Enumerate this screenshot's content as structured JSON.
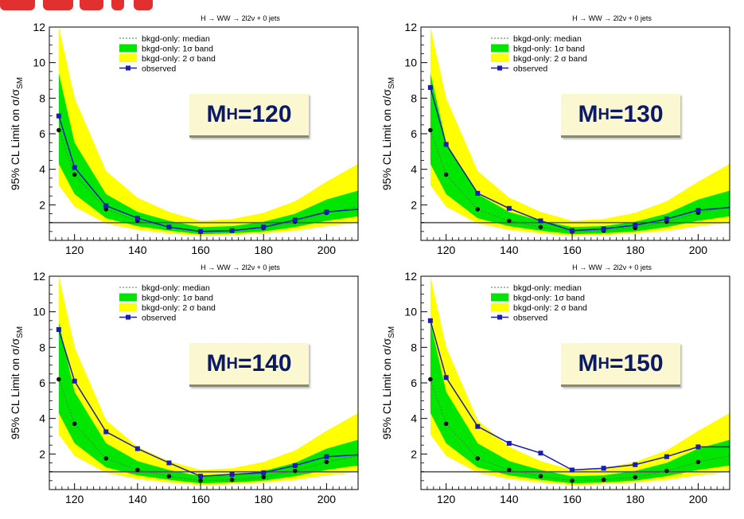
{
  "header_colors": {
    "slide_title": "#e23030"
  },
  "colors": {
    "band2": "#ffff00",
    "band1": "#00e600",
    "median": "#3a8a3a",
    "observed": "#1a1ab4",
    "reference": "#555555",
    "mass_label": "#0a1a66",
    "mass_label_bg": "#fbf7d0"
  },
  "panel_common": {
    "channel_title": "H → WW → 2l2ν + 0 jets",
    "ylabel": "95% CL Limit on σ/σ",
    "ylabel_sub": "SM",
    "legend": {
      "median": "bkgd-only: median",
      "band1": "bkgd-only: 1σ band",
      "band2": "bkgd-only: 2 σ band",
      "observed": "observed"
    },
    "yticks": [
      "2",
      "4",
      "6",
      "8",
      "10",
      "12"
    ],
    "xticks": [
      "120",
      "140",
      "160",
      "180",
      "200"
    ]
  },
  "panels": [
    {
      "mass_label": "M",
      "mass_sub": "H",
      "mass_value": "=120"
    },
    {
      "mass_label": "M",
      "mass_sub": "H",
      "mass_value": "=130"
    },
    {
      "mass_label": "M",
      "mass_sub": "H",
      "mass_value": "=140"
    },
    {
      "mass_label": "M",
      "mass_sub": "H",
      "mass_value": "=150"
    }
  ],
  "chart_data": [
    {
      "type": "line",
      "title": "H → WW → 2l2ν + 0 jets",
      "ylabel": "95% CL Limit on σ/σSM",
      "xlim": [
        112,
        210
      ],
      "ylim": [
        0,
        12
      ],
      "reference_line": 1,
      "x": [
        115,
        120,
        130,
        140,
        150,
        160,
        170,
        180,
        190,
        200,
        210
      ],
      "series": [
        {
          "name": "bkgd-only: median",
          "values": [
            6.2,
            3.7,
            1.75,
            1.1,
            0.75,
            0.5,
            0.55,
            0.7,
            1.05,
            1.55,
            1.9
          ]
        },
        {
          "name": "observed",
          "values": [
            7.0,
            4.1,
            1.95,
            1.25,
            0.75,
            0.5,
            0.55,
            0.75,
            1.15,
            1.6,
            1.75
          ]
        },
        {
          "name": "bkgd-only: 1σ band",
          "lower": [
            4.3,
            2.6,
            1.25,
            0.8,
            0.55,
            0.35,
            0.4,
            0.5,
            0.75,
            1.1,
            1.35
          ],
          "upper": [
            9.4,
            5.5,
            2.6,
            1.6,
            1.1,
            0.75,
            0.8,
            1.05,
            1.5,
            2.3,
            2.8
          ]
        },
        {
          "name": "bkgd-only: 2 σ band",
          "lower": [
            3.1,
            1.9,
            0.95,
            0.6,
            0.4,
            0.25,
            0.3,
            0.4,
            0.55,
            0.8,
            1.0
          ],
          "upper": [
            12.5,
            8.0,
            3.9,
            2.4,
            1.6,
            1.1,
            1.2,
            1.55,
            2.2,
            3.3,
            4.3
          ]
        }
      ]
    },
    {
      "type": "line",
      "title": "H → WW → 2l2ν + 0 jets",
      "ylabel": "95% CL Limit on σ/σSM",
      "xlim": [
        112,
        210
      ],
      "ylim": [
        0,
        12
      ],
      "reference_line": 1,
      "x": [
        115,
        120,
        130,
        140,
        150,
        160,
        170,
        180,
        190,
        200,
        210
      ],
      "series": [
        {
          "name": "bkgd-only: median",
          "values": [
            6.2,
            3.7,
            1.75,
            1.1,
            0.75,
            0.5,
            0.55,
            0.7,
            1.05,
            1.55,
            1.9
          ]
        },
        {
          "name": "observed",
          "values": [
            8.6,
            5.4,
            2.65,
            1.8,
            1.1,
            0.55,
            0.65,
            0.85,
            1.2,
            1.7,
            1.85
          ]
        },
        {
          "name": "bkgd-only: 1σ band",
          "lower": [
            4.3,
            2.6,
            1.25,
            0.8,
            0.55,
            0.35,
            0.4,
            0.5,
            0.75,
            1.1,
            1.35
          ],
          "upper": [
            9.4,
            5.5,
            2.6,
            1.6,
            1.1,
            0.75,
            0.8,
            1.05,
            1.5,
            2.3,
            2.8
          ]
        },
        {
          "name": "bkgd-only: 2 σ band",
          "lower": [
            3.1,
            1.9,
            0.95,
            0.6,
            0.4,
            0.25,
            0.3,
            0.4,
            0.55,
            0.8,
            1.0
          ],
          "upper": [
            12.5,
            8.0,
            3.9,
            2.4,
            1.6,
            1.1,
            1.2,
            1.55,
            2.2,
            3.3,
            4.3
          ]
        }
      ]
    },
    {
      "type": "line",
      "title": "H → WW → 2l2ν + 0 jets",
      "ylabel": "95% CL Limit on σ/σSM",
      "xlim": [
        112,
        210
      ],
      "ylim": [
        0,
        12
      ],
      "reference_line": 1,
      "x": [
        115,
        120,
        130,
        140,
        150,
        160,
        170,
        180,
        190,
        200,
        210
      ],
      "series": [
        {
          "name": "bkgd-only: median",
          "values": [
            6.2,
            3.7,
            1.75,
            1.1,
            0.75,
            0.5,
            0.55,
            0.7,
            1.05,
            1.55,
            1.9
          ]
        },
        {
          "name": "observed",
          "values": [
            9.0,
            6.1,
            3.25,
            2.3,
            1.5,
            0.75,
            0.85,
            0.95,
            1.35,
            1.85,
            1.95
          ]
        },
        {
          "name": "bkgd-only: 1σ band",
          "lower": [
            4.3,
            2.6,
            1.25,
            0.8,
            0.55,
            0.35,
            0.4,
            0.5,
            0.75,
            1.1,
            1.35
          ],
          "upper": [
            9.4,
            5.5,
            2.6,
            1.6,
            1.1,
            0.75,
            0.8,
            1.05,
            1.5,
            2.3,
            2.8
          ]
        },
        {
          "name": "bkgd-only: 2 σ band",
          "lower": [
            3.1,
            1.9,
            0.95,
            0.6,
            0.4,
            0.25,
            0.3,
            0.4,
            0.55,
            0.8,
            1.0
          ],
          "upper": [
            12.5,
            8.0,
            3.9,
            2.4,
            1.6,
            1.1,
            1.2,
            1.55,
            2.2,
            3.3,
            4.3
          ]
        }
      ]
    },
    {
      "type": "line",
      "title": "H → WW → 2l2ν + 0 jets",
      "ylabel": "95% CL Limit on σ/σSM",
      "xlim": [
        112,
        210
      ],
      "ylim": [
        0,
        12
      ],
      "reference_line": 1,
      "x": [
        115,
        120,
        130,
        140,
        150,
        160,
        170,
        180,
        190,
        200,
        210
      ],
      "series": [
        {
          "name": "bkgd-only: median",
          "values": [
            6.2,
            3.7,
            1.75,
            1.1,
            0.75,
            0.5,
            0.55,
            0.7,
            1.05,
            1.55,
            1.9
          ]
        },
        {
          "name": "observed",
          "values": [
            9.5,
            6.3,
            3.55,
            2.6,
            2.05,
            1.1,
            1.2,
            1.4,
            1.85,
            2.4,
            2.4
          ]
        },
        {
          "name": "bkgd-only: 1σ band",
          "lower": [
            4.3,
            2.6,
            1.25,
            0.8,
            0.55,
            0.35,
            0.4,
            0.5,
            0.75,
            1.1,
            1.35
          ],
          "upper": [
            9.4,
            5.5,
            2.6,
            1.6,
            1.1,
            0.75,
            0.8,
            1.05,
            1.5,
            2.3,
            2.8
          ]
        },
        {
          "name": "bkgd-only: 2 σ band",
          "lower": [
            3.1,
            1.9,
            0.95,
            0.6,
            0.4,
            0.25,
            0.3,
            0.4,
            0.55,
            0.8,
            1.0
          ],
          "upper": [
            12.5,
            8.0,
            3.9,
            2.4,
            1.6,
            1.1,
            1.2,
            1.55,
            2.2,
            3.3,
            4.3
          ]
        }
      ]
    }
  ]
}
